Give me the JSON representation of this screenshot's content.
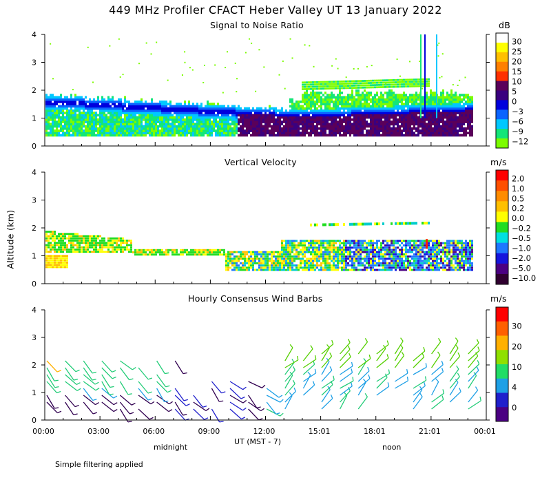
{
  "title": "449 MHz Profiler CFACT Heber Valley UT 13 January 2022",
  "footnote": "Simple filtering applied",
  "y_axis_label": "Altitude (km)",
  "x_axis": {
    "label": "UT  (MST - 7)",
    "ticks": [
      "00:00",
      "03:00",
      "06:00",
      "09:00",
      "12:00",
      "15:01",
      "18:01",
      "21:01",
      "00:01"
    ],
    "annotations": [
      "midnight",
      "noon"
    ]
  },
  "palette": {
    "snr": [
      "#5a005a",
      "#3a007f",
      "#0000dd",
      "#0a64ff",
      "#00c8ff",
      "#14e678",
      "#7cfc00"
    ],
    "vv": [
      "#300030",
      "#4b0082",
      "#1515dd",
      "#1e78ff",
      "#00cccc",
      "#22dd22",
      "#ffff00",
      "#ffc000",
      "#ff8000",
      "#ff2000"
    ],
    "barbs": [
      "#300050",
      "#2020cc",
      "#1ea0e6",
      "#22cc77",
      "#55d000",
      "#ffb000"
    ]
  },
  "chart_data": [
    {
      "type": "heatmap",
      "title": "Signal to Noise Ratio",
      "ylim": [
        0,
        4
      ],
      "y_ticks": [
        "0",
        "1",
        "2",
        "3",
        "4"
      ],
      "colorbar": {
        "unit": "dB",
        "labels": [
          "30",
          "25",
          "20",
          "15",
          "10",
          "5",
          "0",
          "−3",
          "−6",
          "−9",
          "−12"
        ],
        "colors": [
          "#ffffff",
          "#ffff00",
          "#ffc000",
          "#ff8000",
          "#ff3000",
          "#5a005a",
          "#3a007f",
          "#0000dd",
          "#0a64ff",
          "#00c8ff",
          "#14e678",
          "#7cfc00"
        ]
      }
    },
    {
      "type": "heatmap",
      "title": "Vertical Velocity",
      "ylim": [
        0,
        4
      ],
      "y_ticks": [
        "0",
        "1",
        "2",
        "3",
        "4"
      ],
      "colorbar": {
        "unit": "m/s",
        "labels": [
          "2.0",
          "1.0",
          "0.5",
          "0.2",
          "0.0",
          "−0.2",
          "−0.5",
          "−1.0",
          "−2.0",
          "−5.0",
          "−10.0"
        ],
        "colors": [
          "#ff0000",
          "#ff5000",
          "#ff8c00",
          "#ffc000",
          "#ffff00",
          "#22dd22",
          "#00e0e0",
          "#1e78ff",
          "#1515dd",
          "#4b0082",
          "#300030"
        ]
      }
    },
    {
      "type": "scatter",
      "title": "Hourly Consensus Wind Barbs",
      "ylim": [
        0,
        4
      ],
      "y_ticks": [
        "0",
        "1",
        "2",
        "3",
        "4"
      ],
      "colorbar": {
        "unit": "m/s",
        "labels": [
          "30",
          "20",
          "10",
          "4",
          "0"
        ],
        "colors": [
          "#ff0000",
          "#ff6000",
          "#ffb000",
          "#8fe000",
          "#22dd66",
          "#1ea0e6",
          "#2020cc",
          "#4b0082"
        ]
      }
    }
  ]
}
